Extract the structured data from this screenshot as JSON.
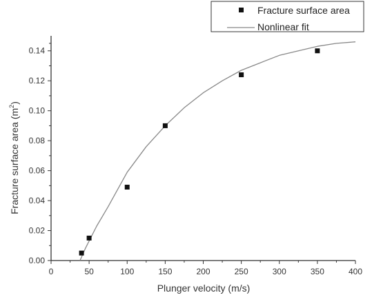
{
  "chart_data": {
    "type": "scatter",
    "xlabel": "Plunger velocity (m/s)",
    "ylabel_main": "Fracture surface area (m",
    "ylabel_sup": "2",
    "ylabel_end": ")",
    "xlim": [
      0,
      400
    ],
    "ylim": [
      0,
      0.15
    ],
    "x_ticks": [
      "0",
      "50",
      "100",
      "150",
      "200",
      "250",
      "300",
      "350",
      "400"
    ],
    "y_ticks": [
      "0.00",
      "0.02",
      "0.04",
      "0.06",
      "0.08",
      "0.10",
      "0.12",
      "0.14"
    ],
    "grid": false,
    "legend_position": "top-right",
    "legend": [
      {
        "label": "Fracture surface area",
        "marker": "square"
      },
      {
        "label": "Nonlinear fit",
        "marker": "line"
      }
    ],
    "series": [
      {
        "name": "Fracture surface area",
        "type": "scatter",
        "x": [
          40,
          50,
          100,
          150,
          250,
          350
        ],
        "y": [
          0.005,
          0.015,
          0.049,
          0.09,
          0.124,
          0.14
        ],
        "color": "#111111"
      },
      {
        "name": "Nonlinear fit",
        "type": "line",
        "x": [
          38,
          45,
          50,
          60,
          75,
          100,
          125,
          150,
          175,
          200,
          225,
          250,
          275,
          300,
          325,
          350,
          375,
          400
        ],
        "y": [
          0.0,
          0.008,
          0.013,
          0.023,
          0.036,
          0.059,
          0.076,
          0.09,
          0.102,
          0.112,
          0.12,
          0.127,
          0.132,
          0.137,
          0.14,
          0.143,
          0.145,
          0.146
        ],
        "color": "#888888"
      }
    ]
  }
}
